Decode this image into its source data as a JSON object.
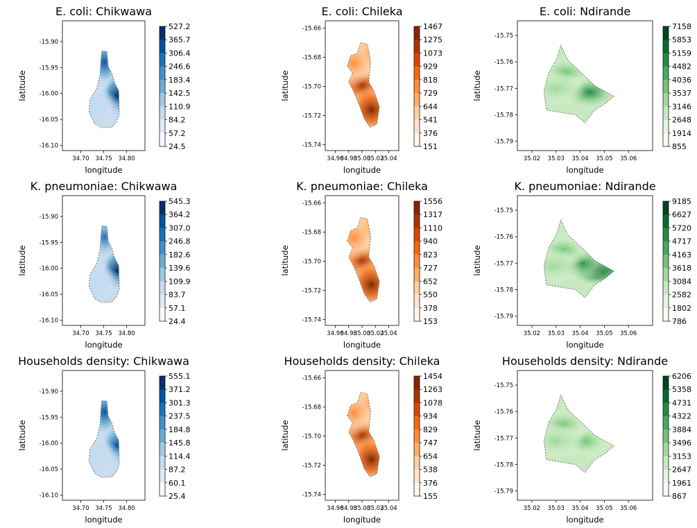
{
  "chart_data": [
    {
      "type": "heatmap",
      "title": "E. coli: Chikwawa",
      "xlabel": "longitude",
      "ylabel": "latitude",
      "xlim": [
        34.66,
        34.84
      ],
      "ylim": [
        -16.11,
        -15.86
      ],
      "xticks": [
        "34.70",
        "34.75",
        "34.80"
      ],
      "yticks": [
        "-15.90",
        "-15.95",
        "-16.00",
        "-16.05",
        "-16.10"
      ],
      "colormap": "Blues",
      "colorbar_ticks": [
        "527.2",
        "365.7",
        "306.4",
        "246.6",
        "183.4",
        "142.5",
        "110.9",
        "84.2",
        "57.2",
        "24.5"
      ],
      "boundary": [
        [
          34.746,
          -15.918
        ],
        [
          34.757,
          -15.919
        ],
        [
          34.76,
          -15.948
        ],
        [
          34.768,
          -15.962
        ],
        [
          34.774,
          -15.98
        ],
        [
          34.783,
          -15.995
        ],
        [
          34.784,
          -16.04
        ],
        [
          34.778,
          -16.055
        ],
        [
          34.768,
          -16.065
        ],
        [
          34.745,
          -16.066
        ],
        [
          34.73,
          -16.058
        ],
        [
          34.718,
          -16.035
        ],
        [
          34.72,
          -16.012
        ],
        [
          34.735,
          -15.99
        ],
        [
          34.742,
          -15.965
        ],
        [
          34.744,
          -15.935
        ]
      ],
      "hotspots": [
        {
          "x": 34.752,
          "y": -15.94,
          "intensity": 0.85
        },
        {
          "x": 34.779,
          "y": -16.005,
          "intensity": 0.95
        },
        {
          "x": 34.76,
          "y": -16.045,
          "intensity": 0.3
        },
        {
          "x": 34.738,
          "y": -16.03,
          "intensity": 0.25
        }
      ]
    },
    {
      "type": "heatmap",
      "title": "E. coli: Chileka",
      "xlabel": "longitude",
      "ylabel": "latitude",
      "xlim": [
        34.945,
        35.055
      ],
      "ylim": [
        -15.744,
        -15.655
      ],
      "xticks": [
        "34.96",
        "34.98",
        "35.00",
        "35.02",
        "35.04"
      ],
      "yticks": [
        "-15.66",
        "-15.68",
        "-15.70",
        "-15.72",
        "-15.74"
      ],
      "colormap": "Oranges",
      "colorbar_ticks": [
        "1467",
        "1275",
        "1073",
        "929",
        "818",
        "729",
        "644",
        "541",
        "376",
        "151"
      ],
      "boundary": [
        [
          34.978,
          -15.686
        ],
        [
          34.983,
          -15.679
        ],
        [
          34.993,
          -15.677
        ],
        [
          34.998,
          -15.67
        ],
        [
          35.008,
          -15.671
        ],
        [
          35.013,
          -15.683
        ],
        [
          35.01,
          -15.697
        ],
        [
          35.018,
          -15.703
        ],
        [
          35.026,
          -15.714
        ],
        [
          35.022,
          -15.726
        ],
        [
          35.012,
          -15.728
        ],
        [
          35.003,
          -15.722
        ],
        [
          34.997,
          -15.714
        ],
        [
          34.987,
          -15.703
        ],
        [
          34.98,
          -15.697
        ],
        [
          34.986,
          -15.691
        ]
      ],
      "hotspots": [
        {
          "x": 35.0,
          "y": -15.699,
          "intensity": 0.85
        },
        {
          "x": 35.014,
          "y": -15.716,
          "intensity": 1.0
        },
        {
          "x": 35.006,
          "y": -15.679,
          "intensity": 0.5
        },
        {
          "x": 34.988,
          "y": -15.684,
          "intensity": 0.45
        }
      ]
    },
    {
      "type": "heatmap",
      "title": "E. coli: Ndirande",
      "xlabel": "longitude",
      "ylabel": "latitude",
      "xlim": [
        35.014,
        35.07
      ],
      "ylim": [
        -15.7935,
        -15.7445
      ],
      "xticks": [
        "35.02",
        "35.03",
        "35.04",
        "35.05",
        "35.06"
      ],
      "yticks": [
        "-15.75",
        "-15.76",
        "-15.77",
        "-15.78",
        "-15.79"
      ],
      "colormap": "Greens",
      "colorbar_ticks": [
        "7158",
        "5853",
        "5159",
        "4482",
        "4036",
        "3537",
        "3146",
        "2648",
        "1914",
        "855"
      ],
      "boundary": [
        [
          35.032,
          -15.7538
        ],
        [
          35.035,
          -15.7595
        ],
        [
          35.041,
          -15.7645
        ],
        [
          35.046,
          -15.769
        ],
        [
          35.054,
          -15.773
        ],
        [
          35.05,
          -15.776
        ],
        [
          35.046,
          -15.7782
        ],
        [
          35.042,
          -15.783
        ],
        [
          35.038,
          -15.78
        ],
        [
          35.026,
          -15.7782
        ],
        [
          35.025,
          -15.771
        ],
        [
          35.027,
          -15.764
        ],
        [
          35.03,
          -15.7595
        ]
      ],
      "hotspots": [
        {
          "x": 35.044,
          "y": -15.7715,
          "intensity": 0.7
        },
        {
          "x": 35.034,
          "y": -15.764,
          "intensity": 0.45
        },
        {
          "x": 35.03,
          "y": -15.77,
          "intensity": 0.35
        }
      ]
    },
    {
      "type": "heatmap",
      "title": "K. pneumoniae: Chikwawa",
      "xlabel": "longitude",
      "ylabel": "latitude",
      "xlim": [
        34.66,
        34.84
      ],
      "ylim": [
        -16.11,
        -15.86
      ],
      "xticks": [
        "34.70",
        "34.75",
        "34.80"
      ],
      "yticks": [
        "-15.90",
        "-15.95",
        "-16.00",
        "-16.05",
        "-16.10"
      ],
      "colormap": "Blues",
      "colorbar_ticks": [
        "545.3",
        "364.2",
        "307.0",
        "246.8",
        "182.6",
        "139.6",
        "109.9",
        "83.7",
        "57.1",
        "24.4"
      ],
      "boundary": [
        [
          34.746,
          -15.918
        ],
        [
          34.757,
          -15.919
        ],
        [
          34.76,
          -15.948
        ],
        [
          34.768,
          -15.962
        ],
        [
          34.774,
          -15.98
        ],
        [
          34.783,
          -15.995
        ],
        [
          34.784,
          -16.04
        ],
        [
          34.778,
          -16.055
        ],
        [
          34.768,
          -16.065
        ],
        [
          34.745,
          -16.066
        ],
        [
          34.73,
          -16.058
        ],
        [
          34.718,
          -16.035
        ],
        [
          34.72,
          -16.012
        ],
        [
          34.735,
          -15.99
        ],
        [
          34.742,
          -15.965
        ],
        [
          34.744,
          -15.935
        ]
      ],
      "hotspots": [
        {
          "x": 34.752,
          "y": -15.94,
          "intensity": 0.8
        },
        {
          "x": 34.779,
          "y": -16.005,
          "intensity": 0.95
        },
        {
          "x": 34.76,
          "y": -16.045,
          "intensity": 0.3
        },
        {
          "x": 34.738,
          "y": -16.03,
          "intensity": 0.25
        }
      ]
    },
    {
      "type": "heatmap",
      "title": "K. pneumoniae: Chileka",
      "xlabel": "longitude",
      "ylabel": "latitude",
      "xlim": [
        34.945,
        35.055
      ],
      "ylim": [
        -15.744,
        -15.655
      ],
      "xticks": [
        "34.96",
        "34.98",
        "35.00",
        "35.02",
        "35.04"
      ],
      "yticks": [
        "-15.66",
        "-15.68",
        "-15.70",
        "-15.72",
        "-15.74"
      ],
      "colormap": "Oranges",
      "colorbar_ticks": [
        "1556",
        "1317",
        "1110",
        "940",
        "823",
        "727",
        "652",
        "550",
        "378",
        "153"
      ],
      "boundary": [
        [
          34.978,
          -15.686
        ],
        [
          34.983,
          -15.679
        ],
        [
          34.993,
          -15.677
        ],
        [
          34.998,
          -15.67
        ],
        [
          35.008,
          -15.671
        ],
        [
          35.013,
          -15.683
        ],
        [
          35.01,
          -15.697
        ],
        [
          35.018,
          -15.703
        ],
        [
          35.026,
          -15.714
        ],
        [
          35.022,
          -15.726
        ],
        [
          35.012,
          -15.728
        ],
        [
          35.003,
          -15.722
        ],
        [
          34.997,
          -15.714
        ],
        [
          34.987,
          -15.703
        ],
        [
          34.98,
          -15.697
        ],
        [
          34.986,
          -15.691
        ]
      ],
      "hotspots": [
        {
          "x": 35.0,
          "y": -15.699,
          "intensity": 0.85
        },
        {
          "x": 35.014,
          "y": -15.716,
          "intensity": 1.0
        },
        {
          "x": 35.006,
          "y": -15.679,
          "intensity": 0.5
        },
        {
          "x": 34.988,
          "y": -15.684,
          "intensity": 0.45
        }
      ]
    },
    {
      "type": "heatmap",
      "title": "K. pneumoniae: Ndirande",
      "xlabel": "longitude",
      "ylabel": "latitude",
      "xlim": [
        35.014,
        35.07
      ],
      "ylim": [
        -15.7935,
        -15.7445
      ],
      "xticks": [
        "35.02",
        "35.03",
        "35.04",
        "35.05",
        "35.06"
      ],
      "yticks": [
        "-15.75",
        "-15.76",
        "-15.77",
        "-15.78",
        "-15.79"
      ],
      "colormap": "Greens",
      "colorbar_ticks": [
        "9185",
        "6627",
        "5720",
        "4717",
        "4163",
        "3618",
        "3084",
        "2582",
        "1802",
        "786"
      ],
      "boundary": [
        [
          35.032,
          -15.7538
        ],
        [
          35.035,
          -15.7595
        ],
        [
          35.041,
          -15.7645
        ],
        [
          35.046,
          -15.769
        ],
        [
          35.054,
          -15.773
        ],
        [
          35.05,
          -15.776
        ],
        [
          35.046,
          -15.7782
        ],
        [
          35.042,
          -15.783
        ],
        [
          35.038,
          -15.78
        ],
        [
          35.026,
          -15.7782
        ],
        [
          35.025,
          -15.771
        ],
        [
          35.027,
          -15.764
        ],
        [
          35.03,
          -15.7595
        ]
      ],
      "hotspots": [
        {
          "x": 35.047,
          "y": -15.7722,
          "intensity": 1.0
        },
        {
          "x": 35.04,
          "y": -15.77,
          "intensity": 0.7
        },
        {
          "x": 35.033,
          "y": -15.765,
          "intensity": 0.55
        },
        {
          "x": 35.029,
          "y": -15.771,
          "intensity": 0.4
        }
      ]
    },
    {
      "type": "heatmap",
      "title": "Households density: Chikwawa",
      "xlabel": "longitude",
      "ylabel": "latitude",
      "xlim": [
        34.66,
        34.84
      ],
      "ylim": [
        -16.11,
        -15.86
      ],
      "xticks": [
        "34.70",
        "34.75",
        "34.80"
      ],
      "yticks": [
        "-15.90",
        "-15.95",
        "-16.00",
        "-16.05",
        "-16.10"
      ],
      "colormap": "Blues",
      "colorbar_ticks": [
        "555.1",
        "371.2",
        "301.3",
        "237.5",
        "184.8",
        "145.8",
        "114.4",
        "87.2",
        "60.1",
        "25.4"
      ],
      "boundary": [
        [
          34.746,
          -15.918
        ],
        [
          34.757,
          -15.919
        ],
        [
          34.76,
          -15.948
        ],
        [
          34.768,
          -15.962
        ],
        [
          34.774,
          -15.98
        ],
        [
          34.783,
          -15.995
        ],
        [
          34.784,
          -16.04
        ],
        [
          34.778,
          -16.055
        ],
        [
          34.768,
          -16.065
        ],
        [
          34.745,
          -16.066
        ],
        [
          34.73,
          -16.058
        ],
        [
          34.718,
          -16.035
        ],
        [
          34.72,
          -16.012
        ],
        [
          34.735,
          -15.99
        ],
        [
          34.742,
          -15.965
        ],
        [
          34.744,
          -15.935
        ]
      ],
      "hotspots": [
        {
          "x": 34.752,
          "y": -15.94,
          "intensity": 0.85
        },
        {
          "x": 34.779,
          "y": -16.005,
          "intensity": 0.9
        },
        {
          "x": 34.76,
          "y": -16.045,
          "intensity": 0.3
        },
        {
          "x": 34.738,
          "y": -16.03,
          "intensity": 0.25
        }
      ]
    },
    {
      "type": "heatmap",
      "title": "Households density: Chileka",
      "xlabel": "longitude",
      "ylabel": "latitude",
      "xlim": [
        34.945,
        35.055
      ],
      "ylim": [
        -15.744,
        -15.655
      ],
      "xticks": [
        "34.96",
        "34.98",
        "35.00",
        "35.02",
        "35.04"
      ],
      "yticks": [
        "-15.66",
        "-15.68",
        "-15.70",
        "-15.72",
        "-15.74"
      ],
      "colormap": "Oranges",
      "colorbar_ticks": [
        "1454",
        "1263",
        "1078",
        "934",
        "829",
        "747",
        "654",
        "538",
        "376",
        "155"
      ],
      "boundary": [
        [
          34.978,
          -15.686
        ],
        [
          34.983,
          -15.679
        ],
        [
          34.993,
          -15.677
        ],
        [
          34.998,
          -15.67
        ],
        [
          35.008,
          -15.671
        ],
        [
          35.013,
          -15.683
        ],
        [
          35.01,
          -15.697
        ],
        [
          35.018,
          -15.703
        ],
        [
          35.026,
          -15.714
        ],
        [
          35.022,
          -15.726
        ],
        [
          35.012,
          -15.728
        ],
        [
          35.003,
          -15.722
        ],
        [
          34.997,
          -15.714
        ],
        [
          34.987,
          -15.703
        ],
        [
          34.98,
          -15.697
        ],
        [
          34.986,
          -15.691
        ]
      ],
      "hotspots": [
        {
          "x": 35.0,
          "y": -15.699,
          "intensity": 0.85
        },
        {
          "x": 35.014,
          "y": -15.716,
          "intensity": 1.0
        },
        {
          "x": 35.006,
          "y": -15.679,
          "intensity": 0.5
        },
        {
          "x": 34.988,
          "y": -15.684,
          "intensity": 0.45
        }
      ]
    },
    {
      "type": "heatmap",
      "title": "Households density: Ndirande",
      "xlabel": "longitude",
      "ylabel": "latitude",
      "xlim": [
        35.014,
        35.07
      ],
      "ylim": [
        -15.7935,
        -15.7445
      ],
      "xticks": [
        "35.02",
        "35.03",
        "35.04",
        "35.05",
        "35.06"
      ],
      "yticks": [
        "-15.75",
        "-15.76",
        "-15.77",
        "-15.78",
        "-15.79"
      ],
      "colormap": "Greens",
      "colorbar_ticks": [
        "6206",
        "5358",
        "4731",
        "4322",
        "3884",
        "3496",
        "3153",
        "2647",
        "1961",
        "867"
      ],
      "boundary": [
        [
          35.032,
          -15.7538
        ],
        [
          35.035,
          -15.7595
        ],
        [
          35.041,
          -15.7645
        ],
        [
          35.046,
          -15.769
        ],
        [
          35.054,
          -15.773
        ],
        [
          35.05,
          -15.776
        ],
        [
          35.046,
          -15.7782
        ],
        [
          35.042,
          -15.783
        ],
        [
          35.038,
          -15.78
        ],
        [
          35.026,
          -15.7782
        ],
        [
          35.025,
          -15.771
        ],
        [
          35.027,
          -15.764
        ],
        [
          35.03,
          -15.7595
        ]
      ],
      "hotspots": [
        {
          "x": 35.042,
          "y": -15.7712,
          "intensity": 0.55
        },
        {
          "x": 35.033,
          "y": -15.765,
          "intensity": 0.45
        },
        {
          "x": 35.03,
          "y": -15.771,
          "intensity": 0.35
        }
      ]
    }
  ],
  "colormaps": {
    "Blues": [
      "#f7fbff",
      "#deebf7",
      "#c6dbef",
      "#9ecae1",
      "#6baed6",
      "#4292c6",
      "#2171b5",
      "#08519c",
      "#08306b"
    ],
    "Oranges": [
      "#fff5eb",
      "#fee6ce",
      "#fdd0a2",
      "#fdae6b",
      "#fd8d3c",
      "#f16913",
      "#d94801",
      "#a63603",
      "#7f2704"
    ],
    "Greens": [
      "#f7fcf5",
      "#e5f5e0",
      "#c7e9c0",
      "#a1d99b",
      "#74c476",
      "#41ab5d",
      "#238b45",
      "#006d2c",
      "#00441b"
    ]
  }
}
